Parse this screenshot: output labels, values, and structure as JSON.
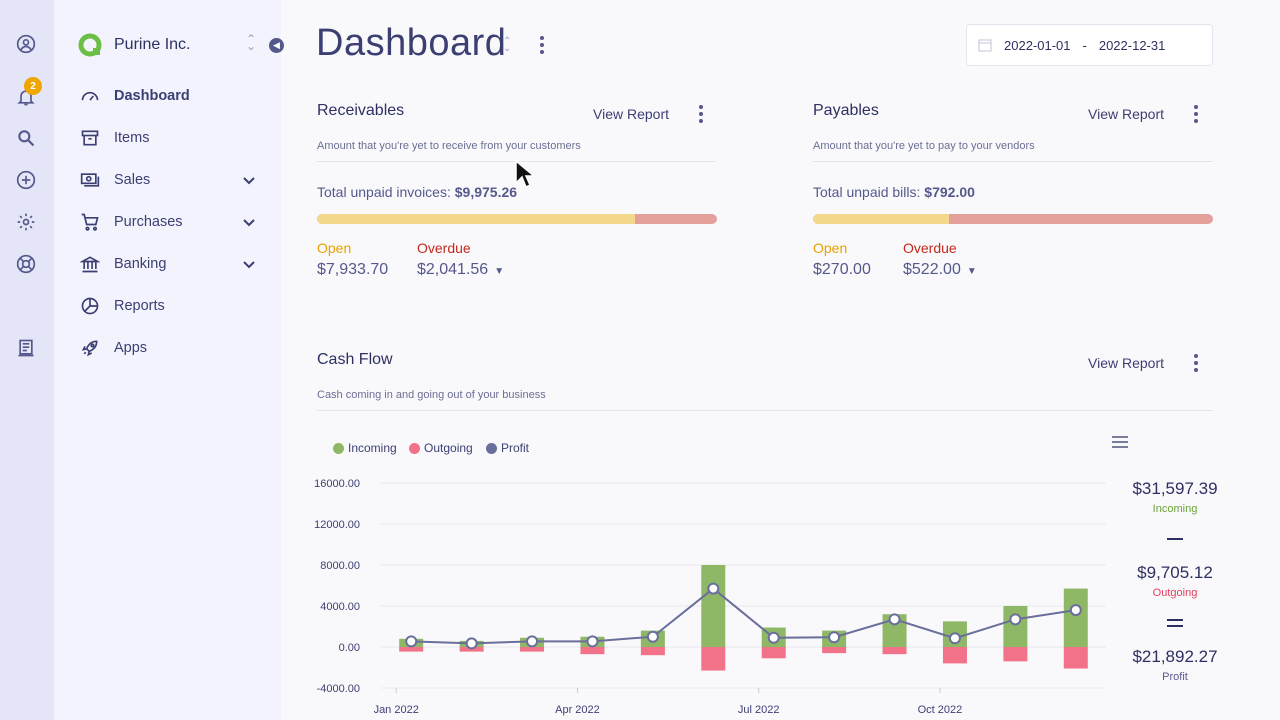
{
  "rail": {
    "notification_count": "2"
  },
  "sidebar": {
    "company_name": "Purine Inc.",
    "items": [
      {
        "label": "Dashboard",
        "icon": "speedometer-icon"
      },
      {
        "label": "Items",
        "icon": "archive-icon"
      },
      {
        "label": "Sales",
        "icon": "money-icon"
      },
      {
        "label": "Purchases",
        "icon": "cart-icon"
      },
      {
        "label": "Banking",
        "icon": "bank-icon"
      },
      {
        "label": "Reports",
        "icon": "pie-chart-icon"
      },
      {
        "label": "Apps",
        "icon": "rocket-icon"
      }
    ]
  },
  "header": {
    "title": "Dashboard",
    "date_start": "2022-01-01",
    "date_sep": "-",
    "date_end": "2022-12-31"
  },
  "receivables": {
    "title": "Receivables",
    "view_report": "View Report",
    "subtitle": "Amount that you're yet to receive from your customers",
    "total_label": "Total unpaid invoices:",
    "total_value": "$9,975.26",
    "open_label": "Open",
    "open_value": "$7,933.70",
    "overdue_label": "Overdue",
    "overdue_value": "$2,041.56",
    "open_fraction": 0.7953
  },
  "payables": {
    "title": "Payables",
    "view_report": "View Report",
    "subtitle": "Amount that you're yet to pay to your vendors",
    "total_label": "Total unpaid bills:",
    "total_value": "$792.00",
    "open_label": "Open",
    "open_value": "$270.00",
    "overdue_label": "Overdue",
    "overdue_value": "$522.00",
    "open_fraction": 0.3409
  },
  "cashflow": {
    "title": "Cash Flow",
    "view_report": "View Report",
    "subtitle": "Cash coming in and going out of your business",
    "incoming_total": "$31,597.39",
    "incoming_label": "Incoming",
    "outgoing_total": "$9,705.12",
    "outgoing_label": "Outgoing",
    "profit_total": "$21,892.27",
    "profit_label": "Profit"
  },
  "colors": {
    "incoming": "#8fb866",
    "outgoing": "#f27289",
    "profit": "#6a6e9b"
  },
  "chart_data": {
    "type": "bar",
    "stacked": true,
    "x": [
      "2022-01",
      "2022-02",
      "2022-03",
      "2022-04",
      "2022-05",
      "2022-06",
      "2022-07",
      "2022-08",
      "2022-09",
      "2022-10",
      "2022-11",
      "2022-12"
    ],
    "xticks": [
      "Jan 2022",
      "Apr 2022",
      "Jul 2022",
      "Oct 2022"
    ],
    "yticks": [
      "16000.00",
      "12000.00",
      "8000.00",
      "4000.00",
      "0.00",
      "-4000.00"
    ],
    "ylim": [
      -4000,
      16000
    ],
    "series": [
      {
        "name": "Incoming",
        "values": [
          800,
          600,
          900,
          1000,
          1600,
          8000,
          1900,
          1600,
          3200,
          2500,
          4000,
          5700
        ]
      },
      {
        "name": "Outgoing",
        "values": [
          -450,
          -450,
          -450,
          -700,
          -800,
          -2300,
          -1100,
          -600,
          -700,
          -1600,
          -1400,
          -2100
        ]
      },
      {
        "name": "Profit",
        "values": [
          550,
          350,
          550,
          550,
          1000,
          5700,
          900,
          950,
          2700,
          850,
          2700,
          3600
        ]
      }
    ]
  }
}
